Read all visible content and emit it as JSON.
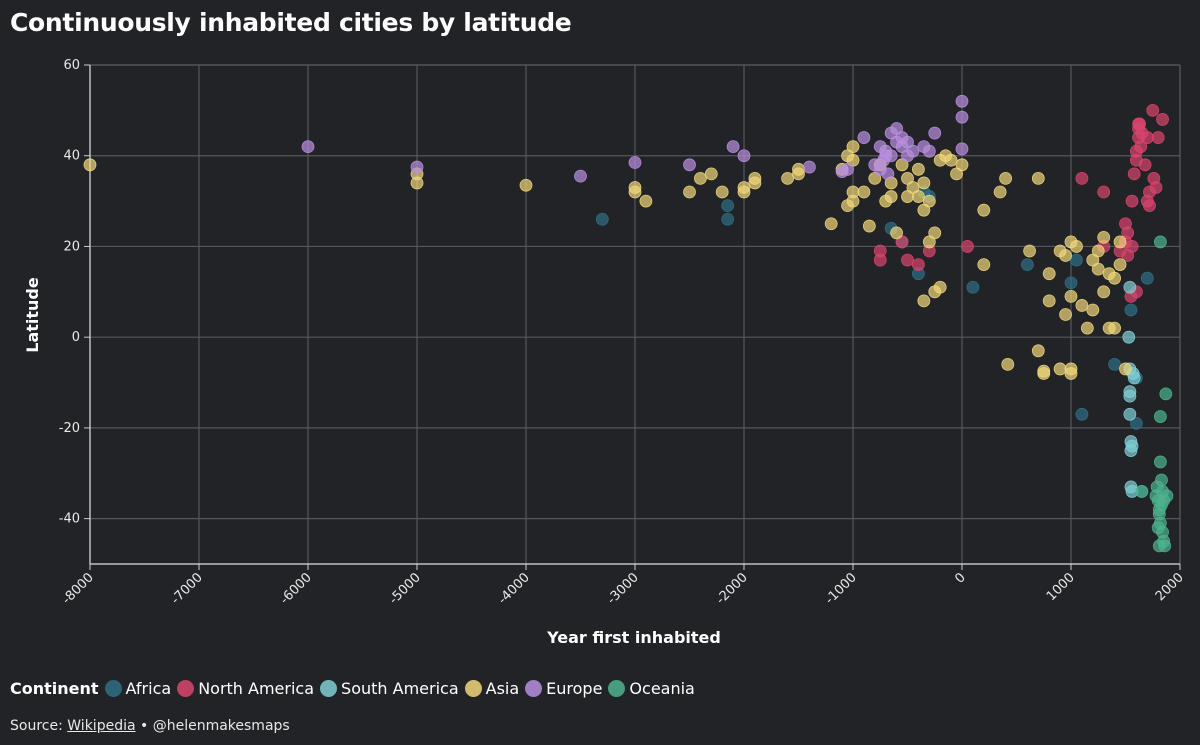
{
  "chart_data": {
    "type": "scatter",
    "title": "Continuously inhabited cities by latitude",
    "xlabel": "Year first inhabited",
    "ylabel": "Latitude",
    "xlim": [
      -8000,
      2000
    ],
    "ylim": [
      -50,
      60
    ],
    "xticks": [
      -8000,
      -7000,
      -6000,
      -5000,
      -4000,
      -3000,
      -2000,
      -1000,
      0,
      1000,
      2000
    ],
    "yticks": [
      -40,
      -20,
      0,
      20,
      40,
      60
    ],
    "grid": true,
    "legend_title": "Continent",
    "legend_position": "bottom-left",
    "series": [
      {
        "name": "Africa",
        "color": "#2e6f86",
        "points": [
          [
            -3300,
            26
          ],
          [
            -2150,
            29
          ],
          [
            -2150,
            26
          ],
          [
            -650,
            24
          ],
          [
            -550,
            21
          ],
          [
            -400,
            14
          ],
          [
            -350,
            32
          ],
          [
            -300,
            31
          ],
          [
            100,
            11
          ],
          [
            600,
            16
          ],
          [
            1000,
            12
          ],
          [
            1050,
            17
          ],
          [
            1100,
            -17
          ],
          [
            1400,
            -6
          ],
          [
            1550,
            6
          ],
          [
            1600,
            -9
          ],
          [
            1600,
            -19
          ],
          [
            1650,
            -34
          ],
          [
            1700,
            13
          ]
        ]
      },
      {
        "name": "North America",
        "color": "#d9456e",
        "points": [
          [
            -750,
            19
          ],
          [
            -750,
            17
          ],
          [
            -550,
            21
          ],
          [
            -500,
            17
          ],
          [
            -400,
            16
          ],
          [
            -300,
            19
          ],
          [
            50,
            20
          ],
          [
            1100,
            35
          ],
          [
            1300,
            32
          ],
          [
            1300,
            20
          ],
          [
            1450,
            19
          ],
          [
            1500,
            21
          ],
          [
            1500,
            25
          ],
          [
            1520,
            23
          ],
          [
            1520,
            18
          ],
          [
            1550,
            9
          ],
          [
            1560,
            30
          ],
          [
            1580,
            36
          ],
          [
            1600,
            10
          ],
          [
            1600,
            39
          ],
          [
            1600,
            41
          ],
          [
            1620,
            44
          ],
          [
            1620,
            46
          ],
          [
            1630,
            47
          ],
          [
            1640,
            42
          ],
          [
            1650,
            45
          ],
          [
            1680,
            38
          ],
          [
            1700,
            44
          ],
          [
            1700,
            30
          ],
          [
            1720,
            32
          ],
          [
            1720,
            29
          ],
          [
            1750,
            50
          ],
          [
            1760,
            35
          ],
          [
            1780,
            33
          ],
          [
            1800,
            44
          ],
          [
            1840,
            48
          ],
          [
            1620,
            47
          ],
          [
            1560,
            20
          ]
        ]
      },
      {
        "name": "South America",
        "color": "#7fcfd4",
        "points": [
          [
            1540,
            -12
          ],
          [
            1540,
            -13
          ],
          [
            1540,
            -17
          ],
          [
            1550,
            -23
          ],
          [
            1550,
            -25
          ],
          [
            1550,
            -33
          ],
          [
            1560,
            -34
          ],
          [
            1570,
            -8
          ],
          [
            1580,
            -9
          ],
          [
            1540,
            11
          ],
          [
            1540,
            -7
          ],
          [
            1530,
            0
          ],
          [
            1560,
            -24
          ]
        ]
      },
      {
        "name": "Asia",
        "color": "#f0d77b",
        "points": [
          [
            -8000,
            38
          ],
          [
            -5000,
            36
          ],
          [
            -5000,
            34
          ],
          [
            -4000,
            33.5
          ],
          [
            -3000,
            33
          ],
          [
            -3000,
            32
          ],
          [
            -2900,
            30
          ],
          [
            -2500,
            32
          ],
          [
            -2400,
            35
          ],
          [
            -2300,
            36
          ],
          [
            -2200,
            32
          ],
          [
            -2000,
            33
          ],
          [
            -2000,
            32
          ],
          [
            -1900,
            34
          ],
          [
            -1900,
            35
          ],
          [
            -1600,
            35
          ],
          [
            -1500,
            37
          ],
          [
            -1500,
            36
          ],
          [
            -1200,
            25
          ],
          [
            -1100,
            37
          ],
          [
            -1050,
            40
          ],
          [
            -1000,
            42
          ],
          [
            -1000,
            39
          ],
          [
            -1000,
            32
          ],
          [
            -1000,
            30
          ],
          [
            -1050,
            29
          ],
          [
            -900,
            32
          ],
          [
            -850,
            24.5
          ],
          [
            -800,
            35
          ],
          [
            -750,
            38
          ],
          [
            -700,
            30
          ],
          [
            -650,
            34
          ],
          [
            -650,
            31
          ],
          [
            -600,
            23
          ],
          [
            -550,
            38
          ],
          [
            -500,
            31
          ],
          [
            -500,
            35
          ],
          [
            -450,
            33
          ],
          [
            -400,
            37
          ],
          [
            -400,
            31
          ],
          [
            -350,
            34
          ],
          [
            -350,
            28
          ],
          [
            -350,
            8
          ],
          [
            -300,
            21
          ],
          [
            -300,
            30
          ],
          [
            -250,
            23
          ],
          [
            -250,
            10
          ],
          [
            -200,
            11
          ],
          [
            -200,
            39
          ],
          [
            -150,
            40
          ],
          [
            -100,
            39
          ],
          [
            -50,
            36
          ],
          [
            0,
            38
          ],
          [
            200,
            28
          ],
          [
            200,
            16
          ],
          [
            350,
            32
          ],
          [
            400,
            35
          ],
          [
            420,
            -6
          ],
          [
            700,
            35
          ],
          [
            700,
            -3
          ],
          [
            750,
            -8
          ],
          [
            750,
            -7.5
          ],
          [
            800,
            8
          ],
          [
            800,
            14
          ],
          [
            900,
            19
          ],
          [
            900,
            -7
          ],
          [
            950,
            5
          ],
          [
            1000,
            21
          ],
          [
            1000,
            9
          ],
          [
            1000,
            -7
          ],
          [
            1000,
            -8
          ],
          [
            1050,
            20
          ],
          [
            1100,
            7
          ],
          [
            1150,
            2
          ],
          [
            1200,
            17
          ],
          [
            1200,
            6
          ],
          [
            1250,
            15
          ],
          [
            1250,
            19
          ],
          [
            1300,
            22
          ],
          [
            1300,
            10
          ],
          [
            1350,
            14
          ],
          [
            1350,
            2
          ],
          [
            1400,
            2
          ],
          [
            1400,
            13
          ],
          [
            1450,
            16
          ],
          [
            1450,
            21
          ],
          [
            1500,
            -7
          ],
          [
            620,
            19
          ],
          [
            950,
            18
          ]
        ]
      },
      {
        "name": "Europe",
        "color": "#b98ee0",
        "points": [
          [
            -6000,
            42
          ],
          [
            -5000,
            37.5
          ],
          [
            -3500,
            35.5
          ],
          [
            -3000,
            38.5
          ],
          [
            -2500,
            38
          ],
          [
            -2100,
            42
          ],
          [
            -2000,
            40
          ],
          [
            -1400,
            37.5
          ],
          [
            -1100,
            36.5
          ],
          [
            -1050,
            37
          ],
          [
            -900,
            44
          ],
          [
            -800,
            38
          ],
          [
            -750,
            42
          ],
          [
            -750,
            37
          ],
          [
            -700,
            41
          ],
          [
            -700,
            40
          ],
          [
            -650,
            40
          ],
          [
            -650,
            45
          ],
          [
            -600,
            46
          ],
          [
            -600,
            43
          ],
          [
            -550,
            42
          ],
          [
            -550,
            44
          ],
          [
            -500,
            40
          ],
          [
            -500,
            43
          ],
          [
            -450,
            41
          ],
          [
            -350,
            42
          ],
          [
            -300,
            41
          ],
          [
            -250,
            45
          ],
          [
            0,
            52
          ],
          [
            0,
            48.5
          ],
          [
            0,
            41.5
          ],
          [
            -720,
            39
          ],
          [
            -680,
            36
          ]
        ]
      },
      {
        "name": "Oceania",
        "color": "#4db38e",
        "points": [
          [
            1650,
            -34
          ],
          [
            1780,
            -35
          ],
          [
            1790,
            -33
          ],
          [
            1800,
            -36
          ],
          [
            1800,
            -42
          ],
          [
            1810,
            -38
          ],
          [
            1810,
            -46
          ],
          [
            1820,
            -27.5
          ],
          [
            1820,
            -17.5
          ],
          [
            1820,
            -41
          ],
          [
            1830,
            -31.5
          ],
          [
            1830,
            -37
          ],
          [
            1840,
            -34
          ],
          [
            1840,
            -43
          ],
          [
            1850,
            -36
          ],
          [
            1850,
            -45
          ],
          [
            1860,
            -46
          ],
          [
            1870,
            -12.5
          ],
          [
            1880,
            -35
          ],
          [
            1820,
            21
          ],
          [
            1810,
            -39
          ]
        ]
      }
    ]
  },
  "source": {
    "prefix": "Source: ",
    "link_text": "Wikipedia",
    "suffix": " • @helenmakesmaps"
  }
}
